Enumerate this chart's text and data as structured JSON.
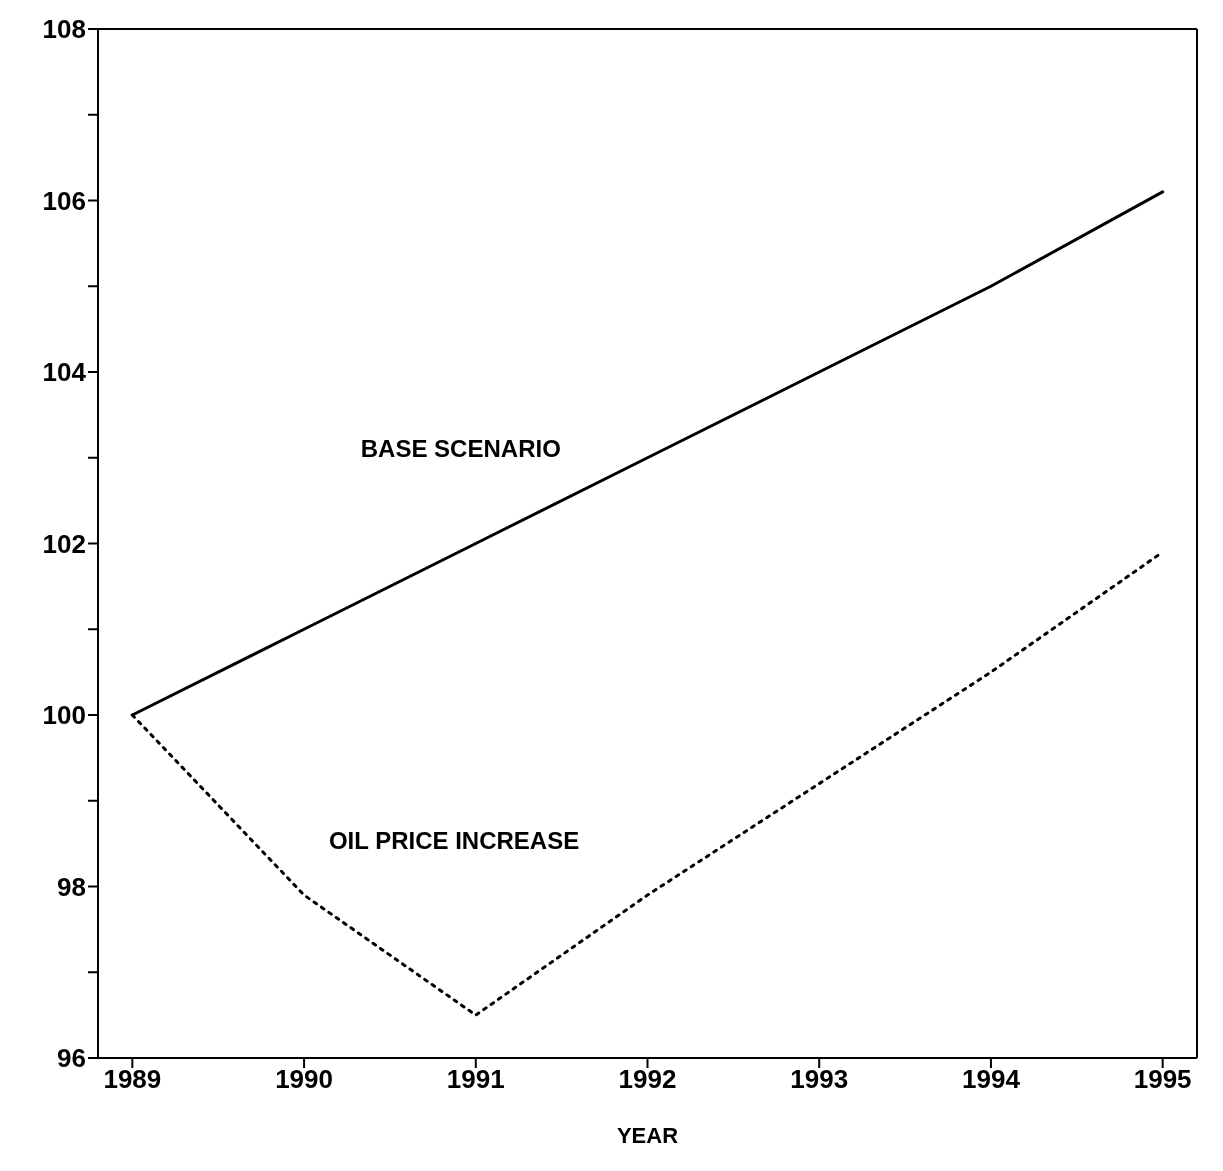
{
  "chart_data": {
    "type": "line",
    "xlabel": "YEAR",
    "x": [
      1989,
      1990,
      1991,
      1992,
      1993,
      1994,
      1995
    ],
    "series": [
      {
        "name": "BASE SCENARIO",
        "color": "#000000",
        "line_style": "solid",
        "values": [
          100,
          101,
          102,
          103,
          104,
          105,
          106.1
        ]
      },
      {
        "name": "OIL PRICE INCREASE",
        "color": "#000000",
        "line_style": "dotted",
        "values": [
          100,
          97.9,
          96.5,
          97.9,
          99.2,
          100.5,
          101.9
        ]
      }
    ],
    "xlim": [
      1988.8,
      1995.2
    ],
    "xticks": [
      1989,
      1990,
      1991,
      1992,
      1993,
      1994,
      1995
    ],
    "ylim": [
      96,
      108
    ],
    "yticks": [
      96,
      {
        "value": 97,
        "label": null
      },
      98,
      {
        "value": 99,
        "label": null
      },
      100,
      {
        "value": 101,
        "label": null
      },
      102,
      {
        "value": 103,
        "label": null
      },
      104,
      {
        "value": 105,
        "label": null
      },
      106,
      {
        "value": 107,
        "label": null
      },
      108
    ],
    "grid": false,
    "legend": false,
    "marker": "none"
  }
}
